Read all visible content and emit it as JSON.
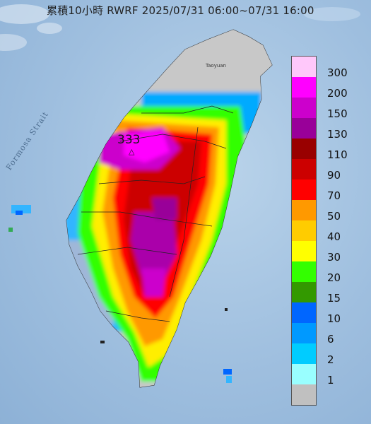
{
  "title": "累積10小時 RWRF 2025/07/31 06:00~07/31 16:00",
  "strait_label": "Formosa Strait",
  "city_label": "Taoyuan",
  "max_value": "333",
  "legend": {
    "items": [
      {
        "label": "300",
        "color": "#ffc8fa"
      },
      {
        "label": "200",
        "color": "#ff00ff"
      },
      {
        "label": "150",
        "color": "#cc00cc"
      },
      {
        "label": "130",
        "color": "#990099"
      },
      {
        "label": "110",
        "color": "#990000"
      },
      {
        "label": "90",
        "color": "#cc0000"
      },
      {
        "label": "70",
        "color": "#ff0000"
      },
      {
        "label": "50",
        "color": "#ff9900"
      },
      {
        "label": "40",
        "color": "#ffcc00"
      },
      {
        "label": "30",
        "color": "#ffff00"
      },
      {
        "label": "20",
        "color": "#33ff00"
      },
      {
        "label": "15",
        "color": "#339900"
      },
      {
        "label": "10",
        "color": "#0066ff"
      },
      {
        "label": "6",
        "color": "#0099ff"
      },
      {
        "label": "2",
        "color": "#00ccff"
      },
      {
        "label": "1",
        "color": "#99ffff"
      },
      {
        "label": "",
        "color": "#c0c0c0"
      }
    ]
  }
}
